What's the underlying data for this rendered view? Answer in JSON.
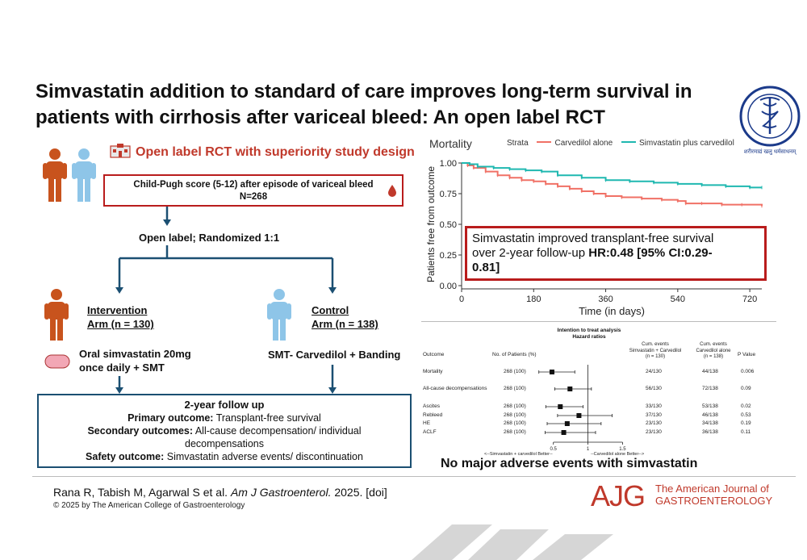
{
  "title": "Simvastatin addition to standard of care improves long-term survival in patients with cirrhosis after variceal bleed: An open label RCT",
  "logo": {
    "icon": "institute-emblem",
    "caption": "शरीरमाद्यं खलु धर्मसाधनम्"
  },
  "design": {
    "heading": "Open label RCT with superiority study design",
    "eligibility": "Child-Pugh score (5-12) after episode of variceal bleed",
    "n": "N=268",
    "randomization": "Open label; Randomized 1:1",
    "intervention": {
      "title_line1": "Intervention",
      "title_line2": "Arm (n = 130)",
      "treatment_line1": "Oral simvastatin 20mg",
      "treatment_line2": "once daily + SMT"
    },
    "control": {
      "title_line1": "Control",
      "title_line2": "Arm (n = 138)",
      "treatment": "SMT- Carvedilol + Banding"
    },
    "followup": {
      "heading": "2-year follow up",
      "primary_label": "Primary outcome:",
      "primary_value": "Transplant-free survival",
      "secondary_label": "Secondary outcomes:",
      "secondary_value": "All-cause decompensation/ individual decompensations",
      "safety_label": "Safety outcome:",
      "safety_value": "Simvastatin adverse events/ discontinuation"
    },
    "colors": {
      "red": "#b91c1c",
      "blue": "#1b4f72",
      "person_orange": "#c8531d",
      "person_blue": "#8ec5e8"
    }
  },
  "chart_data": [
    {
      "type": "line",
      "title": "Mortality",
      "xlabel": "Time (in days)",
      "ylabel": "Patients free from outcome",
      "xlim": [
        0,
        750
      ],
      "ylim": [
        0,
        1.0
      ],
      "xticks": [
        0,
        180,
        360,
        540,
        720
      ],
      "yticks": [
        "0.00",
        "0.25",
        "0.50",
        "0.75",
        "1.00"
      ],
      "legend_title": "Strata",
      "legend_position": "top",
      "series": [
        {
          "name": "Carvedilol alone",
          "color": "#f07166",
          "x": [
            0,
            15,
            30,
            60,
            90,
            120,
            150,
            180,
            210,
            240,
            270,
            300,
            330,
            360,
            400,
            450,
            500,
            540,
            560,
            600,
            650,
            700,
            750
          ],
          "y": [
            1.0,
            0.98,
            0.96,
            0.93,
            0.9,
            0.88,
            0.86,
            0.85,
            0.83,
            0.81,
            0.79,
            0.77,
            0.75,
            0.73,
            0.72,
            0.71,
            0.7,
            0.69,
            0.67,
            0.67,
            0.66,
            0.66,
            0.65
          ]
        },
        {
          "name": "Simvastatin plus carvedilol",
          "color": "#1fb8b0",
          "x": [
            0,
            20,
            40,
            80,
            120,
            160,
            200,
            240,
            300,
            360,
            420,
            480,
            540,
            600,
            660,
            720,
            750
          ],
          "y": [
            1.0,
            0.99,
            0.97,
            0.96,
            0.95,
            0.94,
            0.93,
            0.9,
            0.88,
            0.86,
            0.85,
            0.84,
            0.83,
            0.82,
            0.81,
            0.8,
            0.8
          ]
        }
      ],
      "annotation": {
        "text_line1": "Simvastatin improved transplant-free survival",
        "text_line2_plain": "over 2-year follow-up ",
        "text_line2_bold": "HR:0.48 [95% CI:0.29-",
        "text_line3_bold": "0.81]"
      }
    },
    {
      "type": "table",
      "title_line1": "Intention to treat analysis",
      "title_line2": "Hazard ratios",
      "headers": {
        "outcome": "Outcome",
        "patients": "No. of Patients (%)",
        "simva_l1": "Cum. events",
        "simva_l2": "Simvastatin + Carvedilol",
        "simva_l3": "(n = 130)",
        "carv_l1": "Cum. events",
        "carv_l2": "Carvedilol alone",
        "carv_l3": "(n = 138)",
        "p": "P Value"
      },
      "rows": [
        {
          "outcome": "Mortality",
          "patients": "268 (100)",
          "simva": "24/130",
          "carv": "44/138",
          "p": "0.006",
          "hr": 0.48,
          "lo": 0.29,
          "hi": 0.81
        },
        {
          "outcome": "All-cause decompensations",
          "patients": "268 (100)",
          "simva": "56/130",
          "carv": "72/138",
          "p": "0.09",
          "hr": 0.74,
          "lo": 0.52,
          "hi": 1.05
        },
        {
          "outcome": "Ascites",
          "patients": "268 (100)",
          "simva": "33/130",
          "carv": "53/138",
          "p": "0.02",
          "hr": 0.6,
          "lo": 0.39,
          "hi": 0.93
        },
        {
          "outcome": "Rebleed",
          "patients": "268 (100)",
          "simva": "37/130",
          "carv": "46/138",
          "p": "0.53",
          "hr": 0.87,
          "lo": 0.56,
          "hi": 1.35
        },
        {
          "outcome": "HE",
          "patients": "268 (100)",
          "simva": "23/130",
          "carv": "34/138",
          "p": "0.19",
          "hr": 0.7,
          "lo": 0.41,
          "hi": 1.19
        },
        {
          "outcome": "ACLF",
          "patients": "268 (100)",
          "simva": "23/130",
          "carv": "36/138",
          "p": "0.11",
          "hr": 0.65,
          "lo": 0.38,
          "hi": 1.11
        }
      ],
      "xticks": [
        "0.5",
        "1",
        "1.5"
      ],
      "xlim": [
        0.2,
        1.6
      ],
      "axis_left": "<--Simvastatin + carvedilol Better--",
      "axis_right": "--Carvedilol alone Better-->"
    }
  ],
  "adverse_note": "No major adverse events with simvastatin",
  "citation": {
    "authors": "Rana R, Tabish M, Agarwal S et al. ",
    "journal": "Am J Gastroenterol.",
    "rest": " 2025. [doi]"
  },
  "copyright": "© 2025 by The American College of Gastroenterology",
  "journal_logo": {
    "mark": "AJG",
    "line1": "The American Journal of",
    "line2": "GASTROENTEROLOGY",
    "color": "#c0392b"
  }
}
